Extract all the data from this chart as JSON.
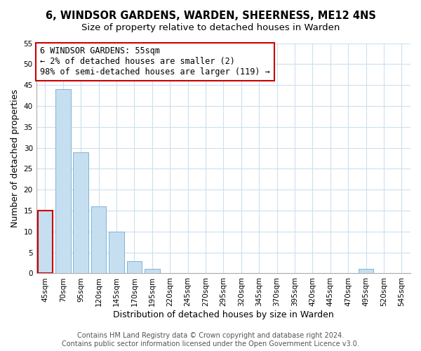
{
  "title": "6, WINDSOR GARDENS, WARDEN, SHEERNESS, ME12 4NS",
  "subtitle": "Size of property relative to detached houses in Warden",
  "xlabel": "Distribution of detached houses by size in Warden",
  "ylabel": "Number of detached properties",
  "footer_line1": "Contains HM Land Registry data © Crown copyright and database right 2024.",
  "footer_line2": "Contains public sector information licensed under the Open Government Licence v3.0.",
  "bin_labels": [
    "45sqm",
    "70sqm",
    "95sqm",
    "120sqm",
    "145sqm",
    "170sqm",
    "195sqm",
    "220sqm",
    "245sqm",
    "270sqm",
    "295sqm",
    "320sqm",
    "345sqm",
    "370sqm",
    "395sqm",
    "420sqm",
    "445sqm",
    "470sqm",
    "495sqm",
    "520sqm",
    "545sqm"
  ],
  "bar_values": [
    15,
    44,
    29,
    16,
    10,
    3,
    1,
    0,
    0,
    0,
    0,
    0,
    0,
    0,
    0,
    0,
    0,
    0,
    1,
    0,
    0
  ],
  "bar_color": "#c6dff0",
  "bar_edge_color": "#7ab5d8",
  "highlight_bar_index": 0,
  "highlight_color": "#cc0000",
  "ylim": [
    0,
    55
  ],
  "yticks": [
    0,
    5,
    10,
    15,
    20,
    25,
    30,
    35,
    40,
    45,
    50,
    55
  ],
  "annotation_line1": "6 WINDSOR GARDENS: 55sqm",
  "annotation_line2": "← 2% of detached houses are smaller (2)",
  "annotation_line3": "98% of semi-detached houses are larger (119) →",
  "grid_color": "#cce0ee",
  "background_color": "#ffffff",
  "title_fontsize": 10.5,
  "subtitle_fontsize": 9.5,
  "axis_label_fontsize": 9,
  "tick_fontsize": 7.5,
  "annotation_fontsize": 8.5,
  "footer_fontsize": 7
}
